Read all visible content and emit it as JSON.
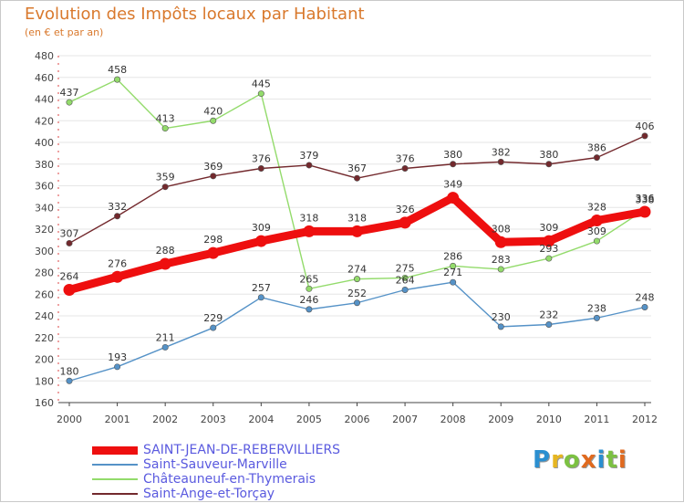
{
  "header": {
    "title": "Evolution des Impôts locaux par Habitant",
    "subtitle": "(en € et par an)"
  },
  "logo": {
    "text": "Proxiti",
    "colors": [
      "#2b8fd0",
      "#e6b622",
      "#7cc142",
      "#e06a1f",
      "#2b8fd0",
      "#7cc142",
      "#e06a1f"
    ]
  },
  "chart_data": {
    "type": "line",
    "title": "Evolution des Impôts locaux par Habitant",
    "subtitle": "(en € et par an)",
    "xlabel": "",
    "ylabel": "",
    "ylim": [
      160,
      480
    ],
    "ytick_step": 20,
    "grid": "horizontal",
    "legend_position": "bottom-left",
    "categories": [
      "2000",
      "2001",
      "2002",
      "2003",
      "2004",
      "2005",
      "2006",
      "2007",
      "2008",
      "2009",
      "2010",
      "2011",
      "2012"
    ],
    "series": [
      {
        "name": "Saint-Sauveur-Marville",
        "color": "#5592c7",
        "thick": false,
        "values": [
          180,
          193,
          211,
          229,
          257,
          246,
          252,
          264,
          271,
          230,
          232,
          238,
          248
        ],
        "labels": [
          "180",
          "193",
          "211",
          "229",
          "257",
          "246",
          "252",
          "264",
          "271",
          "230",
          "232",
          "238",
          "248"
        ]
      },
      {
        "name": "Châteauneuf-en-Thymerais",
        "color": "#93db6b",
        "thick": false,
        "values": [
          437,
          458,
          413,
          420,
          445,
          265,
          274,
          275,
          286,
          283,
          293,
          309,
          338
        ],
        "labels": [
          "437",
          "458",
          "413",
          "420",
          "445",
          "265",
          "274",
          "275",
          "286",
          "283",
          "293",
          "309",
          "338"
        ]
      },
      {
        "name": "Saint-Ange-et-Torçay",
        "color": "#73292d",
        "thick": false,
        "values": [
          307,
          332,
          359,
          369,
          376,
          379,
          367,
          376,
          380,
          382,
          380,
          386,
          406
        ],
        "labels": [
          "307",
          "332",
          "359",
          "369",
          "376",
          "379",
          "367",
          "376",
          "380",
          "382",
          "380",
          "386",
          "406"
        ]
      },
      {
        "name": "SAINT-JEAN-DE-REBERVILLIERS",
        "color": "#ee0f0f",
        "thick": true,
        "values": [
          264,
          276,
          288,
          298,
          309,
          318,
          318,
          326,
          349,
          308,
          309,
          328,
          336
        ],
        "labels": [
          "264",
          "276",
          "288",
          "298",
          "309",
          "318",
          "318",
          "326",
          "349",
          "308",
          "309",
          "328",
          "336"
        ]
      }
    ]
  },
  "legend": [
    {
      "name": "SAINT-JEAN-DE-REBERVILLIERS",
      "color": "#ee0f0f",
      "thick": true
    },
    {
      "name": "Saint-Sauveur-Marville",
      "color": "#5592c7",
      "thick": false
    },
    {
      "name": "Châteauneuf-en-Thymerais",
      "color": "#93db6b",
      "thick": false
    },
    {
      "name": "Saint-Ange-et-Torçay",
      "color": "#73292d",
      "thick": false
    }
  ]
}
